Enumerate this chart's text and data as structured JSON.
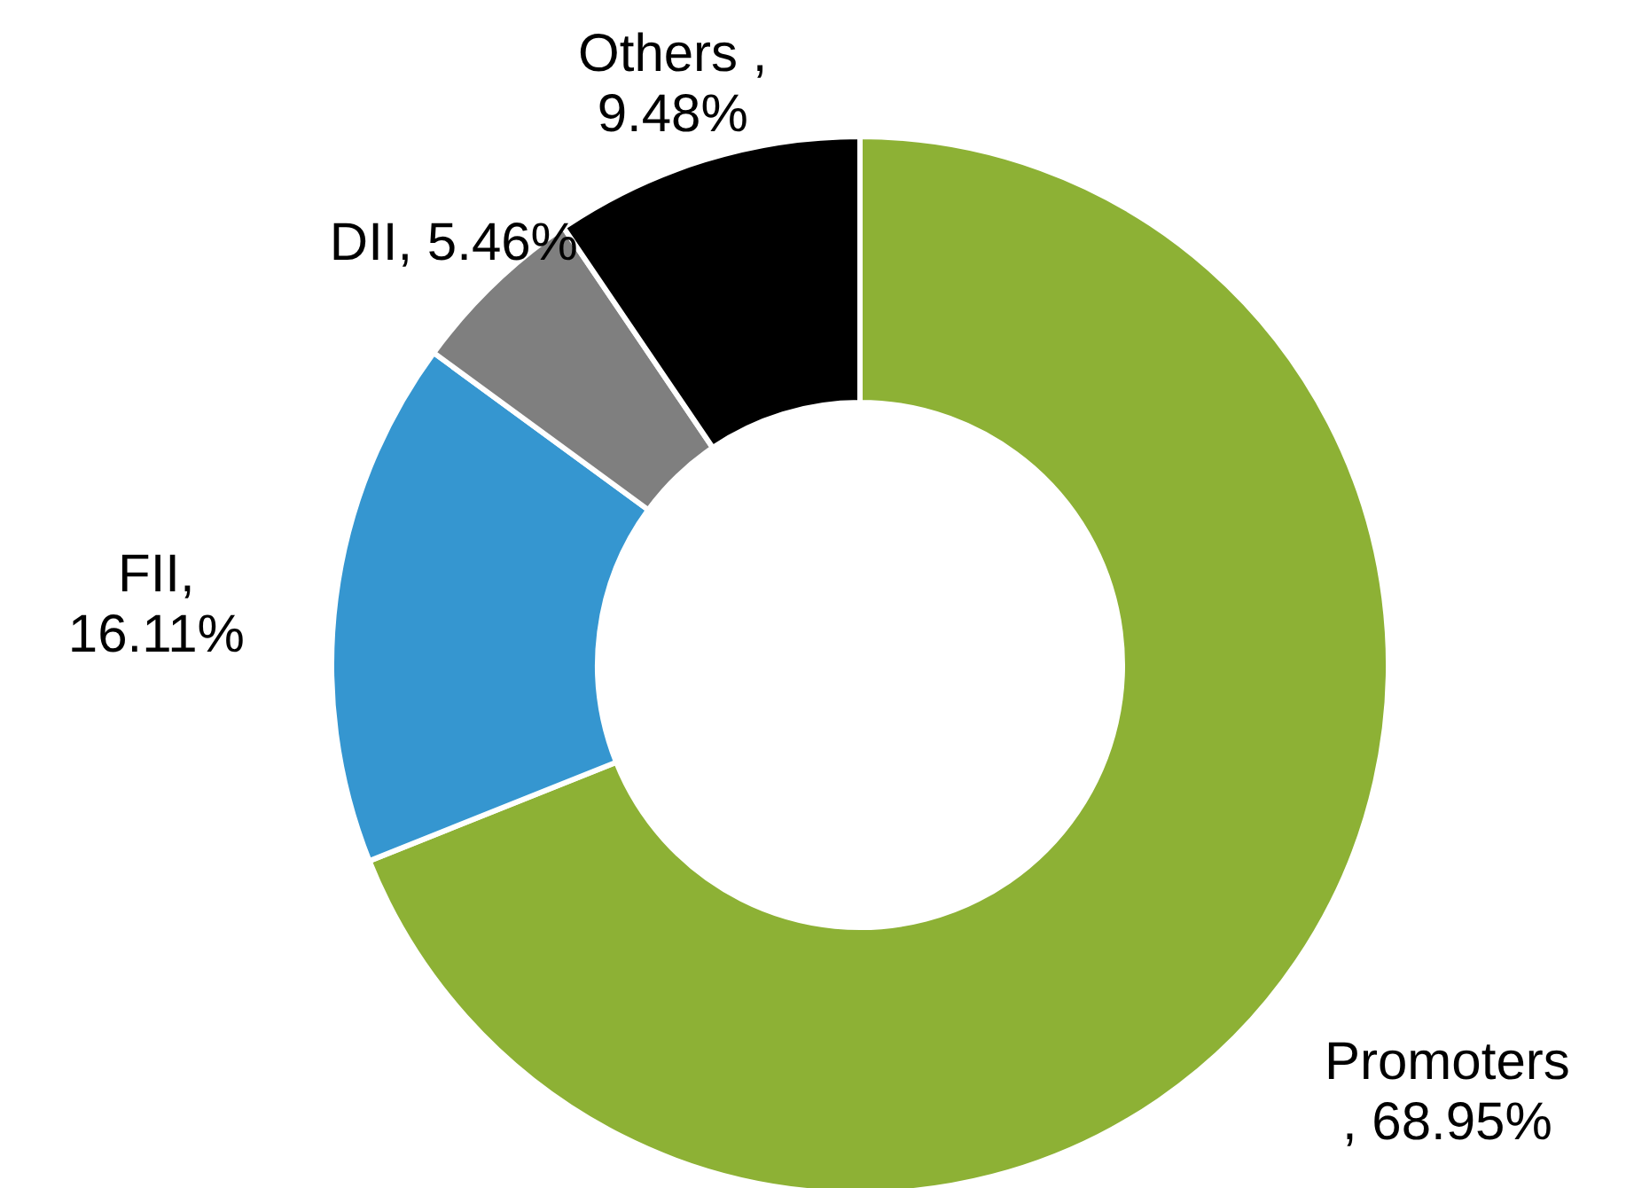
{
  "chart_data": {
    "type": "donut",
    "categories": [
      "Promoters",
      "FII",
      "DII",
      "Others"
    ],
    "values": [
      68.95,
      16.11,
      5.46,
      9.48
    ],
    "colors": [
      "#8db135",
      "#3596d0",
      "#7f7f7f",
      "#000000"
    ],
    "value_labels": [
      " , 68.95%",
      ", 16.11%",
      ", 5.46%",
      " , 9.48%"
    ]
  }
}
